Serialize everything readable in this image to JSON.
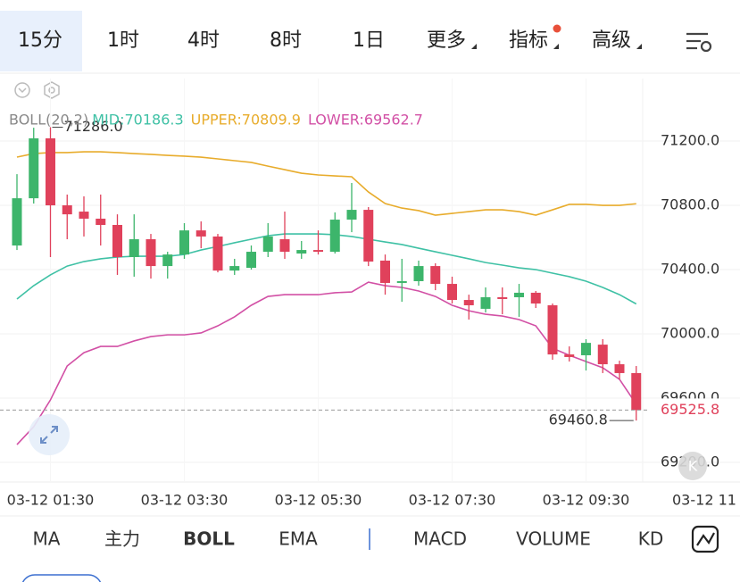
{
  "ui": {
    "top_tabs": [
      "15分",
      "1时",
      "4时",
      "8时",
      "1日",
      "更多",
      "指标",
      "高级"
    ],
    "bottom_tabs": [
      "MA",
      "主力",
      "BOLL",
      "EMA",
      "MACD",
      "VOLUME",
      "KD"
    ]
  },
  "chart_data": {
    "type": "candlestick",
    "indicator_label": "BOLL(20,2)",
    "categories": [
      null,
      null,
      "03-12 01:30",
      null,
      null,
      null,
      null,
      null,
      null,
      null,
      "03-12 03:30",
      null,
      null,
      null,
      null,
      null,
      null,
      null,
      "03-12 05:30",
      null,
      null,
      null,
      null,
      null,
      null,
      null,
      "03-12 07:30",
      null,
      null,
      null,
      null,
      null,
      null,
      null,
      "03-12 09:30",
      null,
      null,
      null
    ],
    "x_overflow_label": "03-12 11",
    "open": [
      70550,
      70844,
      71217,
      70800,
      70761,
      70717,
      70678,
      70478,
      70589,
      70422,
      70494,
      70644,
      70606,
      70394,
      70411,
      70511,
      70589,
      70500,
      70522,
      70511,
      70711,
      70772,
      70456,
      70317,
      70328,
      70422,
      70311,
      70211,
      70156,
      70228,
      70228,
      70256,
      70178,
      69872,
      69867,
      69933,
      69811,
      69756
    ],
    "high": [
      70994,
      71283,
      71286,
      70867,
      70856,
      70867,
      70744,
      70744,
      70622,
      70511,
      70689,
      70700,
      70622,
      70467,
      70550,
      70689,
      70761,
      70578,
      70644,
      70756,
      70939,
      70789,
      70494,
      70467,
      70456,
      70439,
      70356,
      70244,
      70289,
      70289,
      70311,
      70267,
      70189,
      69922,
      69967,
      69967,
      69833,
      69800
    ],
    "low": [
      70522,
      70811,
      70478,
      70589,
      70606,
      70550,
      70367,
      70356,
      70344,
      70344,
      70467,
      70533,
      70383,
      70367,
      70400,
      70478,
      70467,
      70467,
      70494,
      70500,
      70633,
      70422,
      70244,
      70200,
      70300,
      70272,
      70189,
      70089,
      70133,
      70122,
      70106,
      70161,
      69839,
      69828,
      69772,
      69756,
      69717,
      69460.8
    ],
    "close": [
      70844,
      71217,
      70800,
      70744,
      70717,
      70678,
      70478,
      70589,
      70422,
      70494,
      70644,
      70606,
      70394,
      70422,
      70511,
      70606,
      70511,
      70522,
      70511,
      70711,
      70772,
      70450,
      70317,
      70328,
      70422,
      70311,
      70211,
      70178,
      70228,
      70217,
      70256,
      70189,
      69872,
      69856,
      69944,
      69811,
      69756,
      69525.8
    ],
    "up_color": "#3db56b",
    "down_color": "#e0415b",
    "series": [
      {
        "name": "MID:70186.3",
        "color": "#3fc1a5",
        "values": [
          70217,
          70300,
          70367,
          70422,
          70450,
          70467,
          70478,
          70483,
          70483,
          70483,
          70494,
          70522,
          70544,
          70567,
          70589,
          70611,
          70622,
          70622,
          70622,
          70617,
          70606,
          70589,
          70572,
          70556,
          70533,
          70511,
          70489,
          70467,
          70444,
          70428,
          70411,
          70400,
          70378,
          70356,
          70328,
          70289,
          70244,
          70186.3
        ]
      },
      {
        "name": "UPPER:70809.9",
        "color": "#e8ac2c",
        "values": [
          71100,
          71122,
          71128,
          71128,
          71133,
          71133,
          71128,
          71122,
          71117,
          71111,
          71106,
          71100,
          71089,
          71078,
          71067,
          71044,
          71022,
          71000,
          70989,
          70983,
          70978,
          70883,
          70811,
          70783,
          70767,
          70739,
          70750,
          70761,
          70772,
          70772,
          70761,
          70739,
          70772,
          70806,
          70806,
          70800,
          70800,
          70809.9
        ]
      },
      {
        "name": "LOWER:69562.7",
        "color": "#d250a5",
        "values": [
          69311,
          69422,
          69589,
          69800,
          69883,
          69922,
          69922,
          69956,
          69983,
          69994,
          69994,
          70006,
          70050,
          70106,
          70178,
          70233,
          70244,
          70244,
          70244,
          70256,
          70261,
          70322,
          70300,
          70289,
          70267,
          70233,
          70178,
          70144,
          70122,
          70111,
          70089,
          70050,
          69911,
          69867,
          69828,
          69789,
          69717,
          69562.7
        ]
      }
    ],
    "indicator_label_color": "#888888",
    "ylim": [
      69078,
      71589
    ],
    "yticks": [
      {
        "value": 69200,
        "label": "69200.0"
      },
      {
        "value": 69600,
        "label": "69600.0"
      },
      {
        "value": 70000,
        "label": "70000.0"
      },
      {
        "value": 70400,
        "label": "70400.0"
      },
      {
        "value": 70800,
        "label": "70800.0"
      },
      {
        "value": 71200,
        "label": "71200.0"
      }
    ],
    "grid": true,
    "high_label": "71286.0",
    "low_label": "69460.8",
    "last_price_label": "69525.8"
  }
}
